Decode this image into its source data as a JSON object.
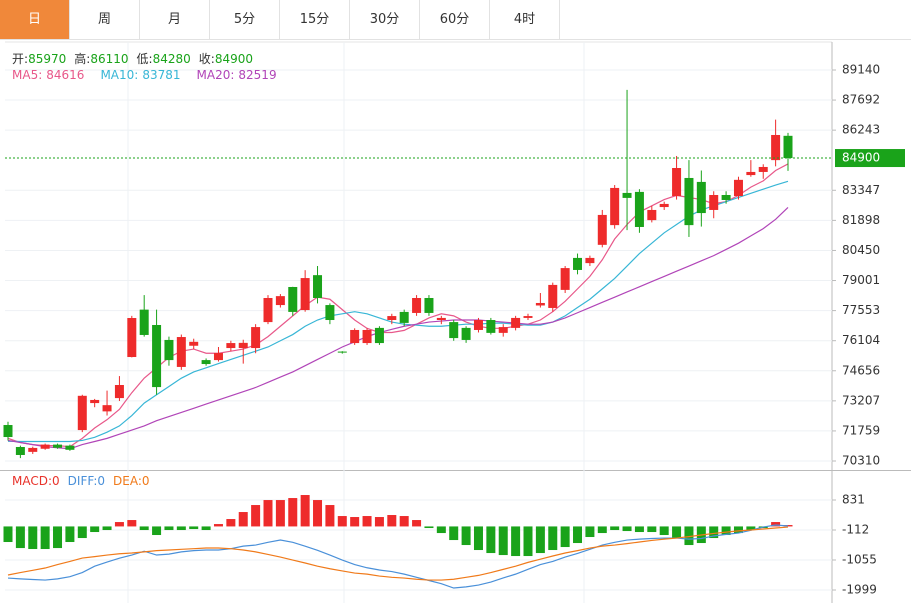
{
  "tabs": [
    "日",
    "周",
    "月",
    "5分",
    "15分",
    "30分",
    "60分",
    "4时"
  ],
  "active_tab": 0,
  "chart_data": [
    {
      "type": "candlestick",
      "separator": ":",
      "ohlc_labels": [
        "开",
        "高",
        "低",
        "收"
      ],
      "up_color": "#ee2b2b",
      "down_color": "#1aa31a",
      "open": [
        72043,
        70985,
        70750,
        70900,
        71100,
        71050,
        71800,
        73100,
        72700,
        73340,
        75318,
        77600,
        76860,
        76140,
        74840,
        75860,
        75170,
        75170,
        75750,
        75750,
        75750,
        77000,
        77820,
        78690,
        77580,
        79260,
        77820,
        75580,
        75990,
        75990,
        76720,
        77100,
        77490,
        77440,
        78160,
        77100,
        77000,
        76720,
        76620,
        77100,
        76480,
        76720,
        77200,
        77800,
        77680,
        78550,
        80090,
        79840,
        80720,
        81670,
        83220,
        83270,
        81910,
        82540,
        83070,
        83940,
        83750,
        82400,
        83120,
        83070,
        84080,
        84230,
        84800,
        85970
      ],
      "high": [
        72200,
        71050,
        71000,
        71150,
        71150,
        71100,
        73500,
        73300,
        73700,
        74400,
        77300,
        78300,
        77600,
        76300,
        76400,
        76200,
        75250,
        75800,
        76100,
        76150,
        76900,
        78300,
        78350,
        78700,
        79500,
        79700,
        77900,
        75600,
        76700,
        76700,
        76800,
        77400,
        77600,
        78300,
        78300,
        77300,
        77100,
        76800,
        77200,
        77200,
        76900,
        77300,
        77400,
        78400,
        78900,
        79700,
        80300,
        80200,
        82400,
        83600,
        88180,
        83400,
        82600,
        82800,
        85000,
        84800,
        84300,
        83300,
        83300,
        84000,
        84800,
        84600,
        86750,
        86110
      ],
      "low": [
        71300,
        70450,
        70650,
        70850,
        70900,
        70800,
        71700,
        72900,
        72500,
        73200,
        75300,
        76300,
        73500,
        74900,
        74700,
        75700,
        74900,
        75100,
        75600,
        75000,
        75500,
        76900,
        77700,
        77300,
        77500,
        77900,
        76900,
        75480,
        75900,
        75900,
        75900,
        76900,
        76800,
        77300,
        77300,
        76900,
        76100,
        76000,
        76500,
        76400,
        76300,
        76600,
        77100,
        77700,
        77500,
        78400,
        79300,
        79700,
        80600,
        81500,
        81430,
        81300,
        81800,
        82400,
        82900,
        81100,
        81600,
        82000,
        82700,
        82900,
        84000,
        83900,
        84500,
        84280
      ],
      "close": [
        71465,
        70600,
        70940,
        71100,
        70950,
        70850,
        73450,
        73250,
        73000,
        73970,
        77196,
        76380,
        73870,
        75170,
        76280,
        76050,
        74980,
        75510,
        75990,
        76000,
        76760,
        78160,
        78250,
        77490,
        79120,
        78160,
        77100,
        75530,
        76620,
        76620,
        75990,
        77290,
        76960,
        78160,
        77440,
        77200,
        76230,
        76140,
        77100,
        76480,
        76760,
        77200,
        77290,
        77920,
        78790,
        79600,
        79510,
        80090,
        82160,
        83460,
        82980,
        81580,
        82400,
        82690,
        84420,
        81670,
        82250,
        83120,
        82880,
        83850,
        84230,
        84470,
        86010,
        84900
      ],
      "series": [
        {
          "name": "MA5",
          "color": "#e8588a",
          "values": [
            71400,
            71200,
            71100,
            71050,
            71050,
            71000,
            71400,
            71900,
            72300,
            72800,
            73600,
            74300,
            74800,
            75300,
            75600,
            75700,
            75500,
            75500,
            75600,
            75700,
            75900,
            76300,
            76800,
            77300,
            77800,
            78200,
            78100,
            77600,
            77100,
            76700,
            76500,
            76500,
            76600,
            76900,
            77200,
            77400,
            77300,
            77000,
            76800,
            76700,
            76700,
            76800,
            76900,
            77100,
            77500,
            78000,
            78600,
            79200,
            80000,
            81000,
            81700,
            82300,
            82600,
            82900,
            83100,
            83000,
            82900,
            82700,
            82800,
            83100,
            83500,
            83800,
            84300,
            84616
          ]
        },
        {
          "name": "MA10",
          "color": "#38b6d6",
          "values": [
            71260,
            71250,
            71250,
            71250,
            71250,
            71250,
            71300,
            71450,
            71700,
            72000,
            72500,
            73100,
            73500,
            73900,
            74300,
            74600,
            74800,
            75000,
            75200,
            75400,
            75600,
            75800,
            76100,
            76400,
            76800,
            77100,
            77300,
            77400,
            77500,
            77400,
            77200,
            77000,
            76900,
            76850,
            76800,
            76800,
            76850,
            76900,
            76900,
            76950,
            76950,
            76900,
            76850,
            76850,
            77000,
            77300,
            77700,
            78100,
            78600,
            79100,
            79700,
            80300,
            80800,
            81300,
            81700,
            82100,
            82400,
            82600,
            82800,
            83000,
            83200,
            83400,
            83600,
            83781
          ]
        },
        {
          "name": "MA20",
          "color": "#b145b8",
          "values": [
            71300,
            71200,
            71100,
            71000,
            70950,
            70900,
            71100,
            71250,
            71400,
            71600,
            71800,
            72000,
            72250,
            72450,
            72650,
            72850,
            73050,
            73250,
            73450,
            73650,
            73850,
            74100,
            74350,
            74600,
            74900,
            75200,
            75500,
            75800,
            76050,
            76300,
            76500,
            76650,
            76800,
            76900,
            77000,
            77050,
            77100,
            77100,
            77100,
            77050,
            77000,
            76950,
            76900,
            76900,
            77000,
            77200,
            77450,
            77700,
            77950,
            78200,
            78450,
            78700,
            78950,
            79200,
            79450,
            79700,
            79950,
            80200,
            80500,
            80800,
            81150,
            81500,
            81950,
            82519
          ]
        }
      ],
      "ylim": [
        69877,
        90488
      ],
      "yticks": [
        89140,
        87692,
        86243,
        83347,
        81898,
        80450,
        79001,
        77553,
        76104,
        74656,
        73207,
        71759,
        70310
      ],
      "last_color": "#1aa31a",
      "grid": true
    },
    {
      "type": "macd",
      "name": "MACD",
      "color": "#e8332b",
      "current_value": 0,
      "separator": ":",
      "up_color": "#ee2b2b",
      "down_color": "#1aa31a",
      "values": [
        -490,
        -680,
        -710,
        -710,
        -680,
        -490,
        -365,
        -176,
        -113,
        138,
        201,
        -113,
        -270,
        -113,
        -113,
        -82,
        -113,
        75,
        233,
        453,
        673,
        830,
        830,
        893,
        988,
        830,
        673,
        327,
        296,
        327,
        296,
        359,
        327,
        201,
        -50,
        -208,
        -428,
        -585,
        -742,
        -837,
        -900,
        -931,
        -931,
        -837,
        -742,
        -648,
        -522,
        -333,
        -208,
        -113,
        -145,
        -176,
        -176,
        -270,
        -365,
        -585,
        -522,
        -365,
        -270,
        -208,
        -113,
        -50,
        138,
        44
      ],
      "series": [
        {
          "name": "DIFF",
          "color": "#4a90d9",
          "current_value": 0,
          "values": [
            -1623,
            -1650,
            -1670,
            -1686,
            -1650,
            -1580,
            -1450,
            -1250,
            -1120,
            -1000,
            -899,
            -780,
            -899,
            -870,
            -800,
            -760,
            -742,
            -742,
            -700,
            -620,
            -585,
            -500,
            -428,
            -500,
            -620,
            -750,
            -900,
            -1057,
            -1200,
            -1300,
            -1371,
            -1420,
            -1500,
            -1600,
            -1700,
            -1800,
            -1937,
            -1900,
            -1843,
            -1750,
            -1620,
            -1500,
            -1350,
            -1200,
            -1100,
            -962,
            -850,
            -720,
            -585,
            -500,
            -428,
            -400,
            -380,
            -365,
            -365,
            -400,
            -380,
            -300,
            -250,
            -208,
            -120,
            -20,
            44,
            13
          ]
        },
        {
          "name": "DEA",
          "color": "#f07a1a",
          "current_value": 0,
          "values": [
            -1528,
            -1450,
            -1380,
            -1308,
            -1200,
            -1100,
            -994,
            -950,
            -900,
            -860,
            -836,
            -800,
            -760,
            -742,
            -720,
            -700,
            -679,
            -679,
            -700,
            -742,
            -800,
            -880,
            -962,
            -1057,
            -1150,
            -1250,
            -1330,
            -1400,
            -1466,
            -1500,
            -1560,
            -1600,
            -1623,
            -1660,
            -1686,
            -1686,
            -1660,
            -1600,
            -1540,
            -1450,
            -1350,
            -1250,
            -1130,
            -1030,
            -930,
            -836,
            -760,
            -680,
            -620,
            -585,
            -540,
            -490,
            -440,
            -400,
            -365,
            -320,
            -270,
            -220,
            -180,
            -140,
            -113,
            -80,
            -50,
            -19
          ]
        }
      ],
      "ylim": [
        -2408,
        1712
      ],
      "yticks": [
        831,
        -112,
        -1055,
        -1999
      ],
      "grid": true
    }
  ]
}
